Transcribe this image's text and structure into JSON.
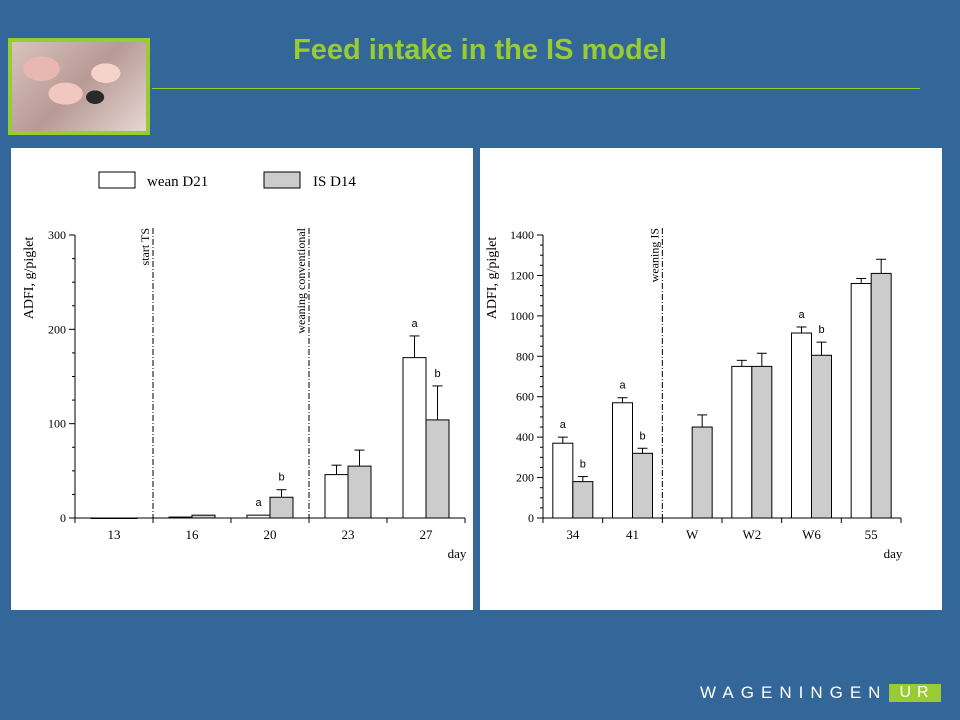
{
  "slide": {
    "title": "Feed intake in the IS model",
    "logo": {
      "name": "WAGENINGEN",
      "suffix": "UR"
    },
    "colors": {
      "background": "#336699",
      "accent": "#99cc33"
    }
  },
  "legend": {
    "series1": "wean D21",
    "series2": "IS D14"
  },
  "chart_data": [
    {
      "type": "bar",
      "ylabel": "ADFI, g/piglet",
      "xlabel": "day",
      "ylim": [
        0,
        300
      ],
      "yticks": [
        "0",
        "100",
        "200",
        "300"
      ],
      "categories": [
        "13",
        "16",
        "20",
        "23",
        "27"
      ],
      "series": [
        {
          "name": "wean D21",
          "values": [
            0,
            1,
            3,
            46,
            170
          ],
          "errors": [
            0,
            0,
            0,
            10,
            23
          ],
          "letters": [
            "",
            "",
            "a",
            "",
            "a"
          ],
          "color": "#ffffff"
        },
        {
          "name": "IS D14",
          "values": [
            0,
            3,
            22,
            55,
            104
          ],
          "errors": [
            0,
            0,
            8,
            17,
            36
          ],
          "letters": [
            "",
            "",
            "b",
            "",
            "b"
          ],
          "color": "#cccccc"
        }
      ],
      "annotations": [
        {
          "text": "start TS",
          "between": [
            0,
            1
          ]
        },
        {
          "text": "weaning conventional",
          "between": [
            2,
            3
          ]
        }
      ],
      "grid": false
    },
    {
      "type": "bar",
      "ylabel": "ADFI, g/piglet",
      "xlabel": "day",
      "ylim": [
        0,
        1400
      ],
      "yticks": [
        "0",
        "200",
        "400",
        "600",
        "800",
        "1000",
        "1200",
        "1400"
      ],
      "categories": [
        "34",
        "41",
        "W",
        "W2",
        "W6",
        "55"
      ],
      "series": [
        {
          "name": "wean D21",
          "values": [
            370,
            570,
            null,
            750,
            915,
            1160
          ],
          "errors": [
            30,
            25,
            0,
            30,
            30,
            25
          ],
          "letters": [
            "a",
            "a",
            "",
            "",
            "a",
            ""
          ],
          "color": "#ffffff"
        },
        {
          "name": "IS D14",
          "values": [
            180,
            320,
            450,
            750,
            805,
            1210
          ],
          "errors": [
            25,
            25,
            60,
            65,
            65,
            70
          ],
          "letters": [
            "b",
            "b",
            "",
            "",
            "b",
            ""
          ],
          "color": "#cccccc"
        }
      ],
      "annotations": [
        {
          "text": "weaning IS",
          "between": [
            1,
            2
          ]
        }
      ],
      "grid": false
    }
  ]
}
